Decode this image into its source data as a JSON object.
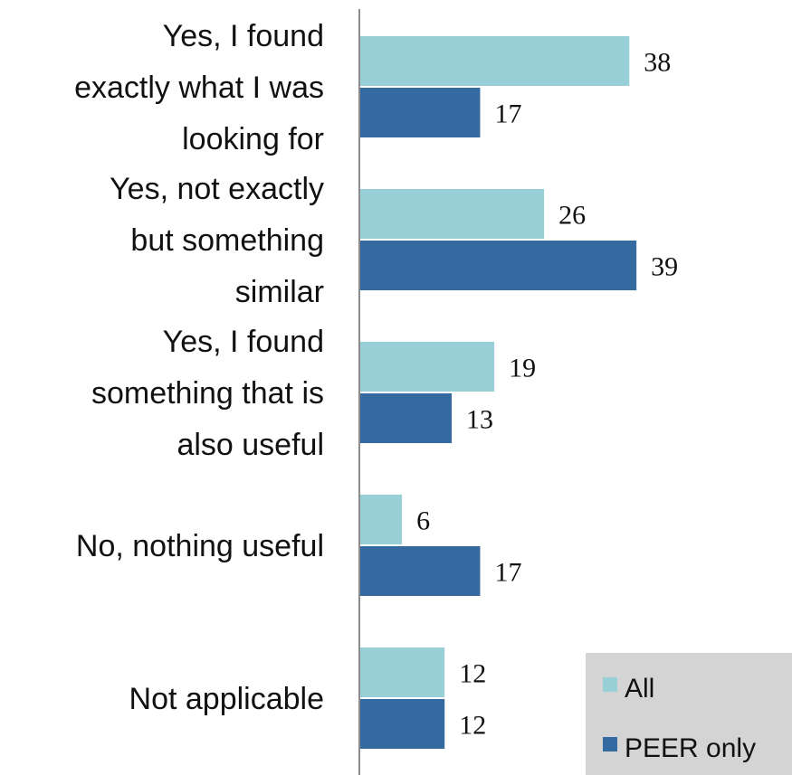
{
  "chart_data": {
    "type": "bar",
    "orientation": "horizontal",
    "categories": [
      "Yes, I found exactly what I was looking for",
      "Yes, not exactly but something similar",
      "Yes, I found something that is also useful",
      "No, nothing useful",
      "Not applicable"
    ],
    "category_lines": [
      [
        "Yes, I found",
        "exactly what I was",
        "looking for"
      ],
      [
        "Yes, not exactly",
        "but something",
        "similar"
      ],
      [
        "Yes, I found",
        "something that is",
        "also useful"
      ],
      [
        "No, nothing useful"
      ],
      [
        "Not applicable"
      ]
    ],
    "series": [
      {
        "name": "All",
        "values": [
          38,
          26,
          19,
          6,
          12
        ],
        "color": "#99d0d8"
      },
      {
        "name": "PEER only",
        "values": [
          17,
          39,
          13,
          17,
          12
        ],
        "color": "#356aa0"
      }
    ],
    "xlim": [
      0,
      50
    ],
    "legend": {
      "position": "bottom-right",
      "background": "#d4d4d4"
    },
    "grid": false
  }
}
